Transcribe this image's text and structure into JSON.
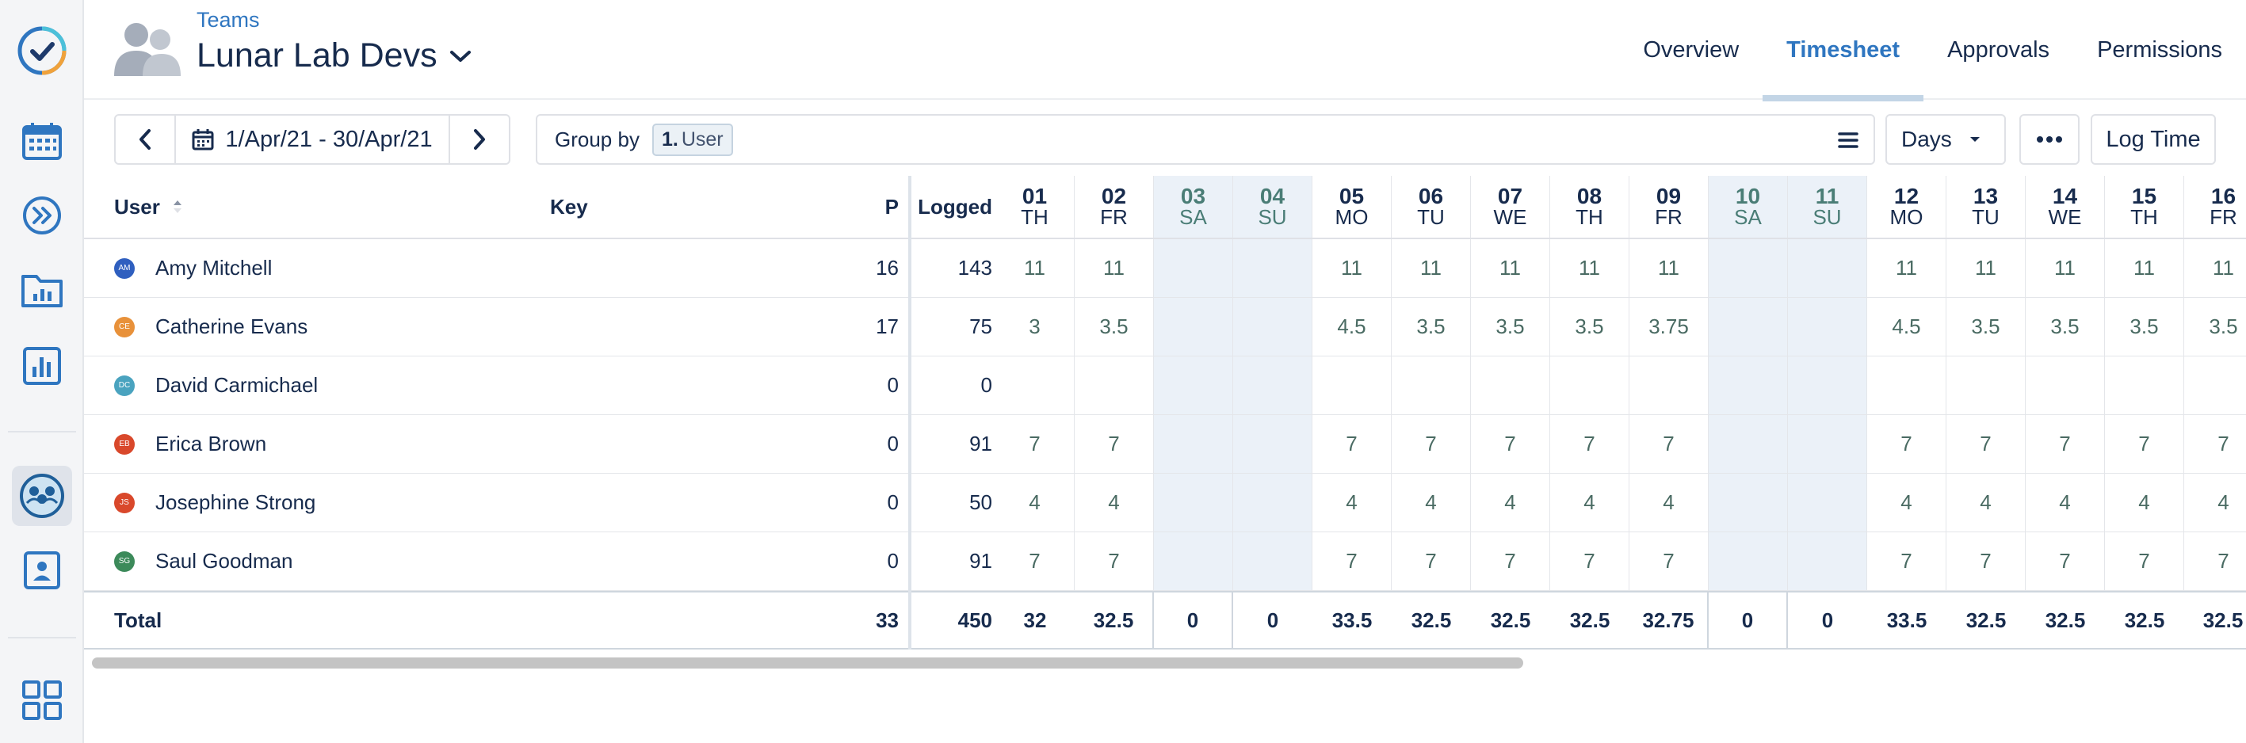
{
  "rail": {
    "icons": [
      "app-logo-icon",
      "calendar-icon",
      "chevrons-right-icon",
      "folder-chart-icon",
      "report-chart-icon",
      "team-icon",
      "profile-icon",
      "apps-grid-icon"
    ]
  },
  "header": {
    "breadcrumb": "Teams",
    "title": "Lunar Lab Devs",
    "tabs": [
      "Overview",
      "Timesheet",
      "Approvals",
      "Permissions"
    ],
    "active_tab": "Timesheet"
  },
  "toolbar": {
    "date_range": "1/Apr/21 - 30/Apr/21",
    "group_by_label": "Group by",
    "group_chip_index": "1.",
    "group_chip_value": "User",
    "period_select": "Days",
    "log_time": "Log Time"
  },
  "table": {
    "columns": {
      "user": "User",
      "key": "Key",
      "p": "P",
      "logged": "Logged"
    },
    "days": [
      {
        "num": "01",
        "wd": "TH",
        "weekend": false
      },
      {
        "num": "02",
        "wd": "FR",
        "weekend": false
      },
      {
        "num": "03",
        "wd": "SA",
        "weekend": true
      },
      {
        "num": "04",
        "wd": "SU",
        "weekend": true
      },
      {
        "num": "05",
        "wd": "MO",
        "weekend": false
      },
      {
        "num": "06",
        "wd": "TU",
        "weekend": false
      },
      {
        "num": "07",
        "wd": "WE",
        "weekend": false
      },
      {
        "num": "08",
        "wd": "TH",
        "weekend": false
      },
      {
        "num": "09",
        "wd": "FR",
        "weekend": false
      },
      {
        "num": "10",
        "wd": "SA",
        "weekend": true
      },
      {
        "num": "11",
        "wd": "SU",
        "weekend": true
      },
      {
        "num": "12",
        "wd": "MO",
        "weekend": false
      },
      {
        "num": "13",
        "wd": "TU",
        "weekend": false
      },
      {
        "num": "14",
        "wd": "WE",
        "weekend": false
      },
      {
        "num": "15",
        "wd": "TH",
        "weekend": false
      },
      {
        "num": "16",
        "wd": "FR",
        "weekend": false
      }
    ],
    "rows": [
      {
        "initials": "AM",
        "color": "#2f5fbf",
        "name": "Amy Mitchell",
        "key": "",
        "p": "16",
        "logged": "143",
        "values": [
          "11",
          "11",
          "",
          "",
          "11",
          "11",
          "11",
          "11",
          "11",
          "",
          "",
          "11",
          "11",
          "11",
          "11",
          "11"
        ]
      },
      {
        "initials": "CE",
        "color": "#e8913a",
        "name": "Catherine Evans",
        "key": "",
        "p": "17",
        "logged": "75",
        "values": [
          "3",
          "3.5",
          "",
          "",
          "4.5",
          "3.5",
          "3.5",
          "3.5",
          "3.75",
          "",
          "",
          "4.5",
          "3.5",
          "3.5",
          "3.5",
          "3.5"
        ]
      },
      {
        "initials": "DC",
        "color": "#4aa3bf",
        "name": "David Carmichael",
        "key": "",
        "p": "0",
        "logged": "0",
        "values": [
          "",
          "",
          "",
          "",
          "",
          "",
          "",
          "",
          "",
          "",
          "",
          "",
          "",
          "",
          "",
          ""
        ]
      },
      {
        "initials": "EB",
        "color": "#d9482b",
        "name": "Erica Brown",
        "key": "",
        "p": "0",
        "logged": "91",
        "values": [
          "7",
          "7",
          "",
          "",
          "7",
          "7",
          "7",
          "7",
          "7",
          "",
          "",
          "7",
          "7",
          "7",
          "7",
          "7"
        ]
      },
      {
        "initials": "JS",
        "color": "#d9482b",
        "name": "Josephine Strong",
        "key": "",
        "p": "0",
        "logged": "50",
        "values": [
          "4",
          "4",
          "",
          "",
          "4",
          "4",
          "4",
          "4",
          "4",
          "",
          "",
          "4",
          "4",
          "4",
          "4",
          "4"
        ]
      },
      {
        "initials": "SG",
        "color": "#3c8a5a",
        "name": "Saul Goodman",
        "key": "",
        "p": "0",
        "logged": "91",
        "values": [
          "7",
          "7",
          "",
          "",
          "7",
          "7",
          "7",
          "7",
          "7",
          "",
          "",
          "7",
          "7",
          "7",
          "7",
          "7"
        ]
      }
    ],
    "total": {
      "label": "Total",
      "p": "33",
      "logged": "450",
      "values": [
        "32",
        "32.5",
        "0",
        "0",
        "33.5",
        "32.5",
        "32.5",
        "32.5",
        "32.75",
        "0",
        "0",
        "33.5",
        "32.5",
        "32.5",
        "32.5",
        "32.5"
      ]
    }
  }
}
